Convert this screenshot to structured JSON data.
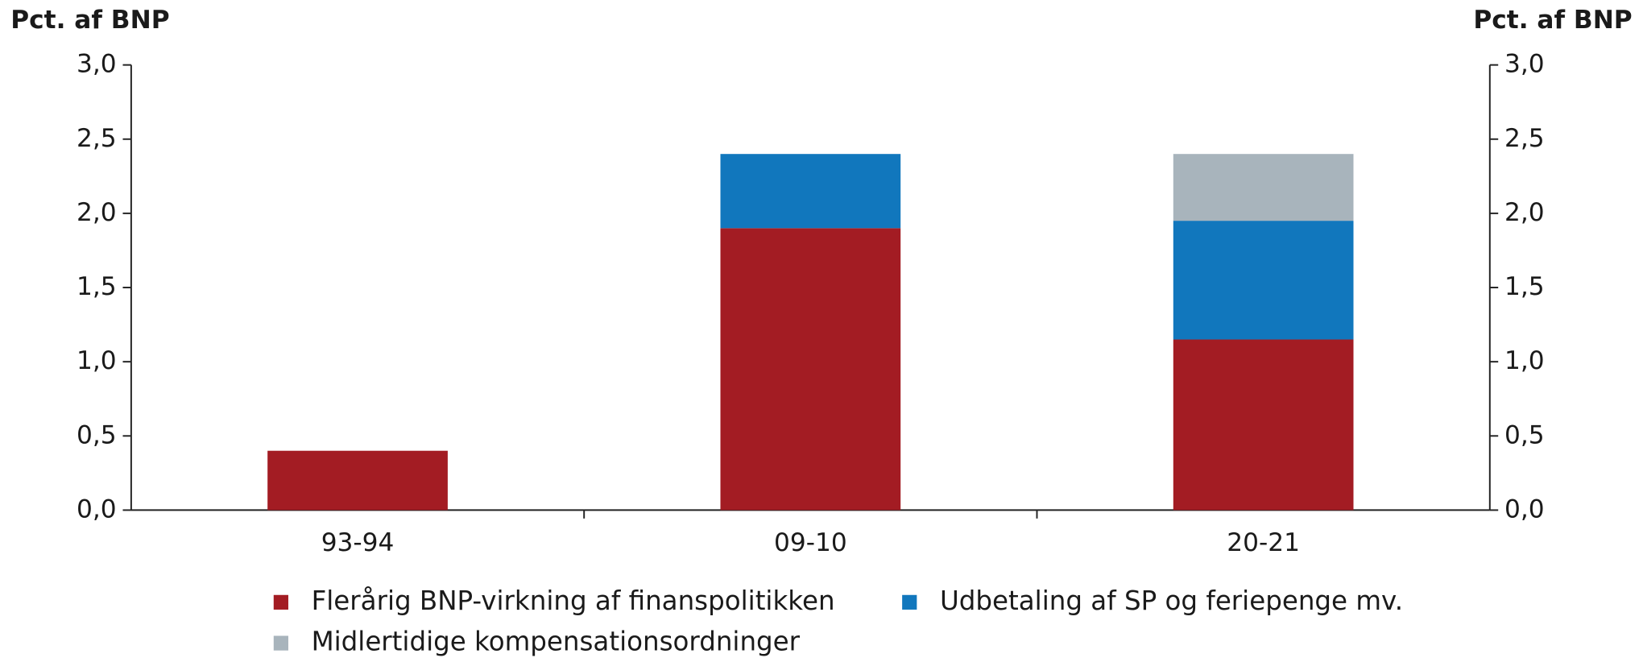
{
  "chart_data": {
    "type": "stacked_bar",
    "y_label": "Pct. af BNP",
    "y2_label": "Pct. af BNP",
    "categories": [
      "93-94",
      "09-10",
      "20-21"
    ],
    "series": [
      {
        "name": "Flerårig BNP-virkning af finanspolitikken",
        "color": "#a31c23",
        "values": [
          0.4,
          1.9,
          1.15
        ]
      },
      {
        "name": "Udbetaling af SP og feriepenge mv.",
        "color": "#1177bd",
        "values": [
          null,
          0.5,
          0.8
        ]
      },
      {
        "name": "Midlertidige kompensationsordninger",
        "color": "#a8b4bc",
        "values": [
          null,
          null,
          0.45
        ]
      }
    ],
    "ylim": [
      0,
      3
    ],
    "yticks": [
      {
        "value": 0,
        "label": "0,0"
      },
      {
        "value": 0.5,
        "label": "0,5"
      },
      {
        "value": 1,
        "label": "1,0"
      },
      {
        "value": 1.5,
        "label": "1,5"
      },
      {
        "value": 2,
        "label": "2,0"
      },
      {
        "value": 2.5,
        "label": "2,5"
      },
      {
        "value": 3,
        "label": "3,0"
      }
    ],
    "y2lim": [
      0,
      3
    ],
    "y2ticks": [
      {
        "value": 0,
        "label": "0,0"
      },
      {
        "value": 0.5,
        "label": "0,5"
      },
      {
        "value": 1,
        "label": "1,0"
      },
      {
        "value": 1.5,
        "label": "1,5"
      },
      {
        "value": 2,
        "label": "2,0"
      },
      {
        "value": 2.5,
        "label": "2,5"
      },
      {
        "value": 3,
        "label": "3,0"
      }
    ],
    "grid": false
  }
}
